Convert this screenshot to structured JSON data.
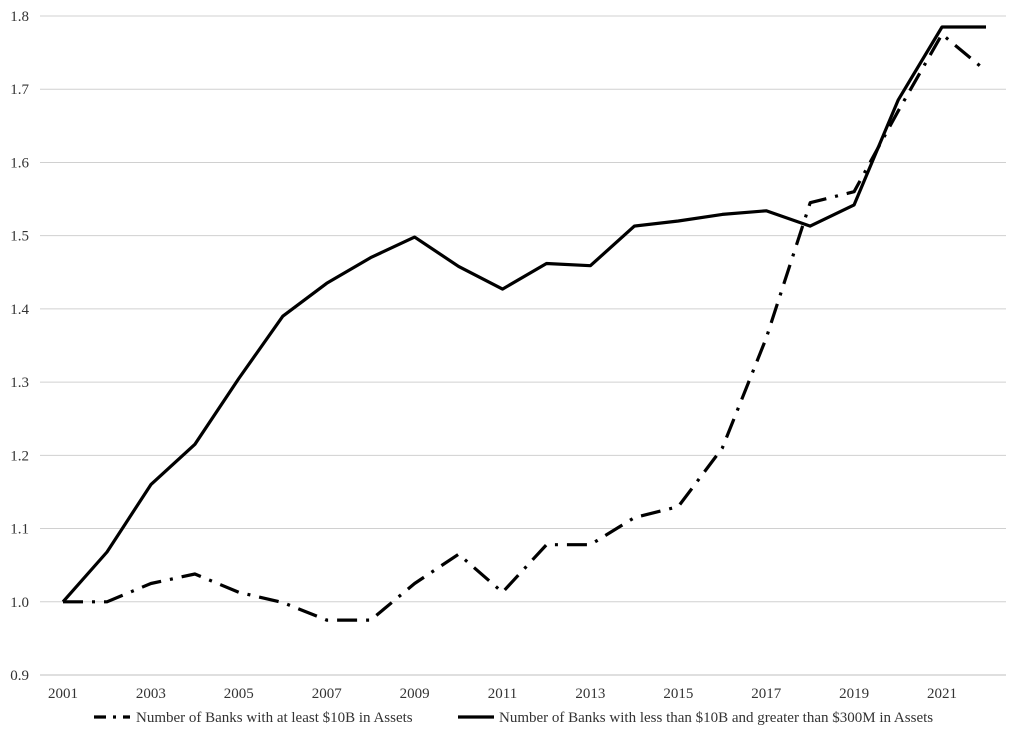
{
  "chart_data": {
    "type": "line",
    "title": "",
    "xlabel": "",
    "ylabel": "",
    "xlim": [
      2001,
      2022
    ],
    "ylim": [
      0.9,
      1.8
    ],
    "x_ticks": [
      2001,
      2003,
      2005,
      2007,
      2009,
      2011,
      2013,
      2015,
      2017,
      2019,
      2021
    ],
    "x_tick_labels": [
      "2001",
      "2003",
      "2005",
      "2007",
      "2009",
      "2011",
      "2013",
      "2015",
      "2017",
      "2019",
      "2021"
    ],
    "y_ticks": [
      0.9,
      1.0,
      1.1,
      1.2,
      1.3,
      1.4,
      1.5,
      1.6,
      1.7,
      1.8
    ],
    "y_tick_labels": [
      "0.9",
      "1.0",
      "1.1",
      "1.2",
      "1.3",
      "1.4",
      "1.5",
      "1.6",
      "1.7",
      "1.8"
    ],
    "grid": "horizontal",
    "legend_position": "bottom",
    "x": [
      2001,
      2002,
      2003,
      2004,
      2005,
      2006,
      2007,
      2008,
      2009,
      2010,
      2011,
      2012,
      2013,
      2014,
      2015,
      2016,
      2017,
      2018,
      2019,
      2020,
      2021,
      2022
    ],
    "series": [
      {
        "name": "Number of Banks with at least $10B in Assets",
        "style": "dash-dot",
        "color": "#000000",
        "values": [
          1.0,
          1.0,
          1.025,
          1.038,
          1.013,
          0.999,
          0.975,
          0.975,
          1.025,
          1.065,
          1.013,
          1.078,
          1.078,
          1.115,
          1.13,
          1.21,
          1.36,
          1.545,
          1.56,
          1.67,
          1.775,
          1.725
        ]
      },
      {
        "name": "Number of Banks with less than $10B and greater than $300M in Assets",
        "style": "solid",
        "color": "#000000",
        "values": [
          1.0,
          1.068,
          1.16,
          1.215,
          1.305,
          1.39,
          1.435,
          1.47,
          1.498,
          1.458,
          1.427,
          1.462,
          1.459,
          1.513,
          1.52,
          1.529,
          1.534,
          1.513,
          1.542,
          1.685,
          1.785,
          1.785
        ]
      }
    ]
  }
}
